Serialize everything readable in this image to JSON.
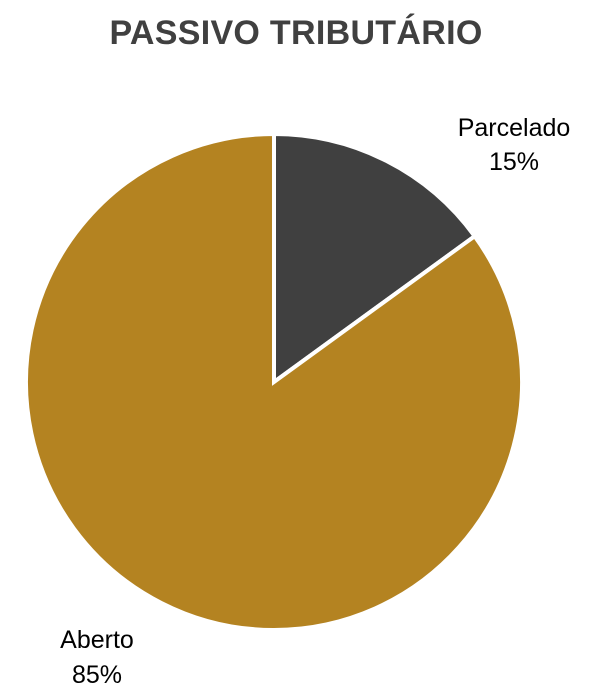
{
  "chart_data": {
    "type": "pie",
    "title": "PASSIVO TRIBUTÁRIO",
    "slices": [
      {
        "name": "Parcelado",
        "value": 15,
        "label": "15%",
        "color": "#404040"
      },
      {
        "name": "Aberto",
        "value": 85,
        "label": "85%",
        "color": "#B48321"
      }
    ],
    "start_angle": "12 o'clock",
    "direction": "clockwise",
    "legend": "none",
    "slice_border_color": "#FFFFFF"
  }
}
